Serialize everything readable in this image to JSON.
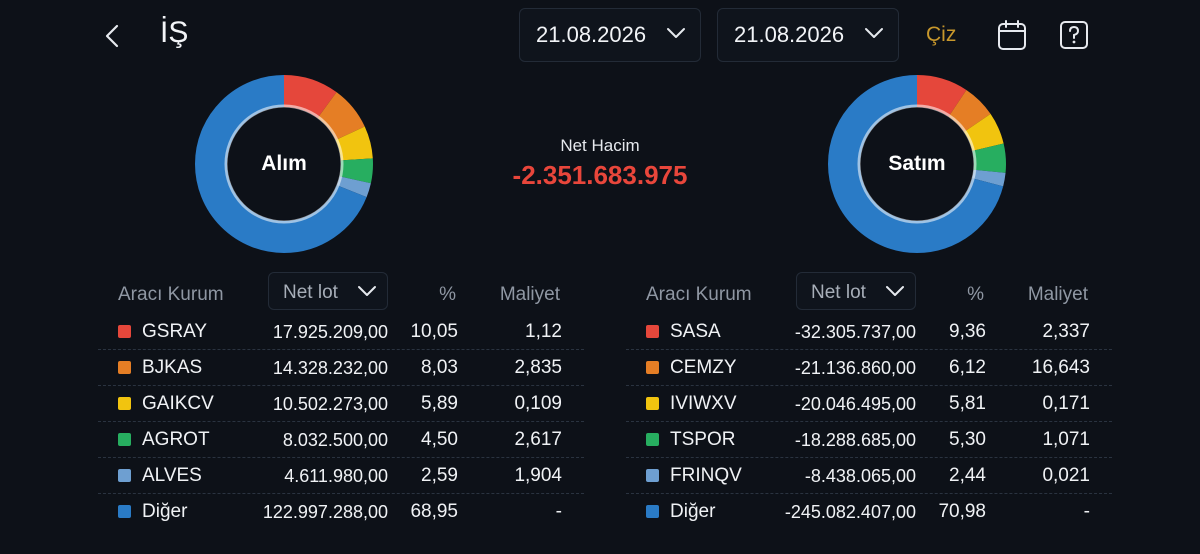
{
  "header": {
    "title": "İŞ",
    "date_from": "21.08.2026",
    "date_to": "21.08.2026",
    "draw_label": "Çiz",
    "icons": [
      "back-icon",
      "calendar-icon",
      "help-icon"
    ]
  },
  "summary": {
    "buy_label": "Alım",
    "sell_label": "Satım",
    "net_volume_label": "Net Hacim",
    "net_volume_value": "-2.351.683.975"
  },
  "colors": {
    "red": "#e5473b",
    "orange": "#e57e25",
    "yellow": "#f1c40f",
    "green": "#27ae60",
    "lightblue": "#6e9fd1",
    "blue": "#2a7bc6",
    "negative": "#e8463b",
    "accent": "#c8982c"
  },
  "buy_table": {
    "col_broker": "Aracı Kurum",
    "col_selector": "Net lot",
    "col_pct": "%",
    "col_cost": "Maliyet",
    "rows": [
      {
        "name": "GSRAY",
        "lot": "17.925.209,00",
        "pct": "10,05",
        "cost": "1,12",
        "color": "#e5473b"
      },
      {
        "name": "BJKAS",
        "lot": "14.328.232,00",
        "pct": "8,03",
        "cost": "2,835",
        "color": "#e57e25"
      },
      {
        "name": "GAIKCV",
        "lot": "10.502.273,00",
        "pct": "5,89",
        "cost": "0,109",
        "color": "#f1c40f"
      },
      {
        "name": "AGROT",
        "lot": "8.032.500,00",
        "pct": "4,50",
        "cost": "2,617",
        "color": "#27ae60"
      },
      {
        "name": "ALVES",
        "lot": "4.611.980,00",
        "pct": "2,59",
        "cost": "1,904",
        "color": "#6e9fd1"
      },
      {
        "name": "Diğer",
        "lot": "122.997.288,00",
        "pct": "68,95",
        "cost": "-",
        "color": "#2a7bc6"
      }
    ]
  },
  "sell_table": {
    "col_broker": "Aracı Kurum",
    "col_selector": "Net lot",
    "col_pct": "%",
    "col_cost": "Maliyet",
    "rows": [
      {
        "name": "SASA",
        "lot": "-32.305.737,00",
        "pct": "9,36",
        "cost": "2,337",
        "color": "#e5473b"
      },
      {
        "name": "CEMZY",
        "lot": "-21.136.860,00",
        "pct": "6,12",
        "cost": "16,643",
        "color": "#e57e25"
      },
      {
        "name": "IVIWXV",
        "lot": "-20.046.495,00",
        "pct": "5,81",
        "cost": "0,171",
        "color": "#f1c40f"
      },
      {
        "name": "TSPOR",
        "lot": "-18.288.685,00",
        "pct": "5,30",
        "cost": "1,071",
        "color": "#27ae60"
      },
      {
        "name": "FRINQV",
        "lot": "-8.438.065,00",
        "pct": "2,44",
        "cost": "0,021",
        "color": "#6e9fd1"
      },
      {
        "name": "Diğer",
        "lot": "-245.082.407,00",
        "pct": "70,98",
        "cost": "-",
        "color": "#2a7bc6"
      }
    ]
  }
}
